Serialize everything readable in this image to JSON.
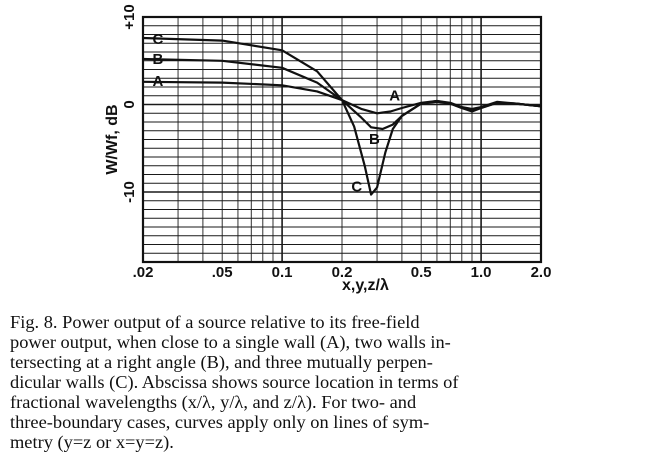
{
  "chart_data": {
    "type": "line",
    "xscale": "log",
    "xlim": [
      0.02,
      2.0
    ],
    "ylim": [
      -18,
      10
    ],
    "grid": true,
    "xlabel": "x,y,z/λ",
    "ylabel": "W/Wf, dB",
    "x_ticks": [
      {
        "value": 0.02,
        "label": ".02"
      },
      {
        "value": 0.05,
        "label": ".05"
      },
      {
        "value": 0.1,
        "label": "0.1"
      },
      {
        "value": 0.2,
        "label": "0.2"
      },
      {
        "value": 0.5,
        "label": "0.5"
      },
      {
        "value": 1.0,
        "label": "1.0"
      },
      {
        "value": 2.0,
        "label": "2.0"
      }
    ],
    "y_ticks": [
      {
        "value": 10,
        "label": "+10"
      },
      {
        "value": 0,
        "label": "0"
      },
      {
        "value": -10,
        "label": "-10"
      }
    ],
    "series": [
      {
        "name": "A",
        "points": [
          [
            0.02,
            2.6
          ],
          [
            0.05,
            2.5
          ],
          [
            0.1,
            2.2
          ],
          [
            0.15,
            1.5
          ],
          [
            0.2,
            0.5
          ],
          [
            0.25,
            -0.5
          ],
          [
            0.3,
            -1.0
          ],
          [
            0.35,
            -0.8
          ],
          [
            0.4,
            -0.4
          ],
          [
            0.5,
            0.2
          ],
          [
            0.6,
            0.4
          ],
          [
            0.7,
            0.2
          ],
          [
            0.8,
            -0.3
          ],
          [
            0.9,
            -0.5
          ],
          [
            1.0,
            -0.3
          ],
          [
            1.2,
            0.3
          ],
          [
            1.5,
            0.1
          ],
          [
            2.0,
            -0.2
          ]
        ]
      },
      {
        "name": "B",
        "points": [
          [
            0.02,
            5.2
          ],
          [
            0.05,
            5.0
          ],
          [
            0.1,
            4.2
          ],
          [
            0.15,
            2.5
          ],
          [
            0.2,
            0.5
          ],
          [
            0.25,
            -1.5
          ],
          [
            0.28,
            -2.6
          ],
          [
            0.32,
            -2.8
          ],
          [
            0.36,
            -2.3
          ],
          [
            0.4,
            -1.3
          ],
          [
            0.5,
            0.1
          ],
          [
            0.6,
            0.3
          ],
          [
            0.7,
            0.1
          ],
          [
            0.8,
            -0.4
          ],
          [
            0.9,
            -0.7
          ],
          [
            1.0,
            -0.4
          ],
          [
            1.2,
            0.2
          ],
          [
            1.5,
            0.1
          ],
          [
            2.0,
            -0.2
          ]
        ]
      },
      {
        "name": "C",
        "points": [
          [
            0.02,
            7.6
          ],
          [
            0.05,
            7.3
          ],
          [
            0.1,
            6.2
          ],
          [
            0.15,
            3.8
          ],
          [
            0.2,
            0.5
          ],
          [
            0.23,
            -2.5
          ],
          [
            0.26,
            -7.0
          ],
          [
            0.28,
            -10.3
          ],
          [
            0.3,
            -9.5
          ],
          [
            0.33,
            -5.5
          ],
          [
            0.36,
            -2.8
          ],
          [
            0.4,
            -1.3
          ],
          [
            0.5,
            0.1
          ],
          [
            0.6,
            0.4
          ],
          [
            0.7,
            0.1
          ],
          [
            0.8,
            -0.4
          ],
          [
            0.9,
            -0.8
          ],
          [
            1.0,
            -0.4
          ],
          [
            1.2,
            0.2
          ],
          [
            1.5,
            0.1
          ],
          [
            2.0,
            -0.2
          ]
        ]
      }
    ]
  },
  "caption": {
    "lines": [
      "Fig.   8. Power output of a source relative to its free-field",
      "power output, when close to a single wall (A), two walls in-",
      "tersecting at a right angle (B), and three mutually perpen-",
      "dicular walls (C). Abscissa shows source location in terms of",
      "fractional wavelengths (x/λ, y/λ, and z/λ). For two- and",
      "three-boundary cases, curves apply only on lines of sym-",
      "metry (y=z or x=y=z)."
    ]
  }
}
